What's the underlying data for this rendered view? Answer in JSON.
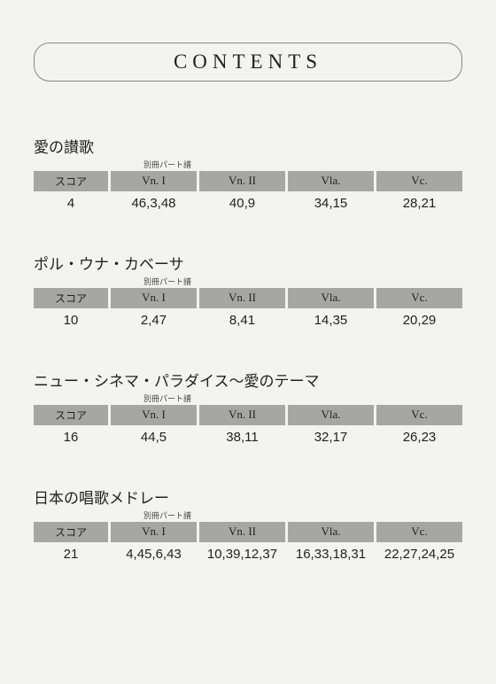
{
  "page": {
    "title": "CONTENTS",
    "subLabel": "別冊パート譜",
    "columns": {
      "score": "スコア",
      "vn1": "Vn. I",
      "vn2": "Vn. II",
      "vla": "Vla.",
      "vc": "Vc."
    }
  },
  "sections": [
    {
      "title": "愛の讃歌",
      "score": "4",
      "vn1": "46,3,48",
      "vn2": "40,9",
      "vla": "34,15",
      "vc": "28,21"
    },
    {
      "title": "ポル・ウナ・カベーサ",
      "score": "10",
      "vn1": "2,47",
      "vn2": "8,41",
      "vla": "14,35",
      "vc": "20,29"
    },
    {
      "title": "ニュー・シネマ・パラダイス〜愛のテーマ",
      "score": "16",
      "vn1": "44,5",
      "vn2": "38,11",
      "vla": "32,17",
      "vc": "26,23"
    },
    {
      "title": "日本の唱歌メドレー",
      "score": "21",
      "vn1": "4,45,6,43",
      "vn2": "10,39,12,37",
      "vla": "16,33,18,31",
      "vc": "22,27,24,25"
    }
  ]
}
